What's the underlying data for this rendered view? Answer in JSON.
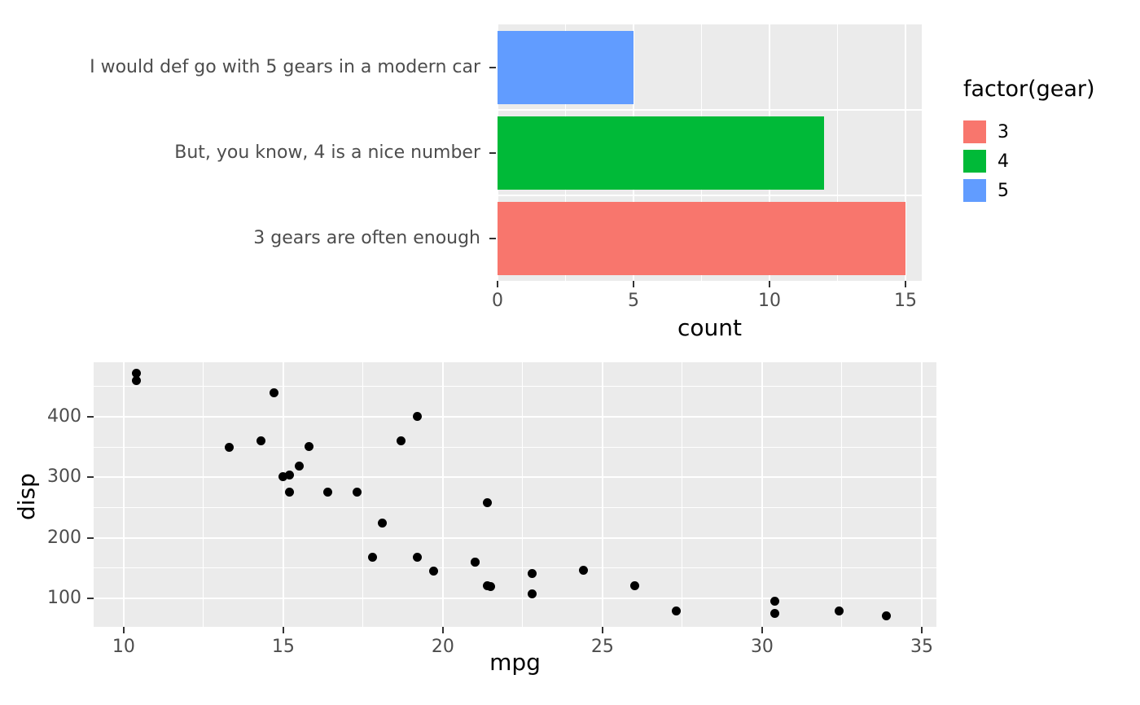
{
  "chart_data": [
    {
      "type": "bar",
      "orientation": "horizontal",
      "categories": [
        "I would def go with 5 gears in a modern car",
        "But, you know, 4 is a nice number",
        "3 gears are often enough"
      ],
      "values": [
        5,
        12,
        15
      ],
      "bar_colors": [
        "#619CFF",
        "#00BA38",
        "#F8766D"
      ],
      "xlabel": "count",
      "x_ticks": [
        0,
        5,
        10,
        15
      ],
      "x_minor_ticks": [
        2.5,
        7.5,
        12.5
      ],
      "xlim": [
        0,
        15.6
      ],
      "panel_background": "#EBEBEB",
      "grid_color": "#FFFFFF",
      "legend": {
        "title": "factor(gear)",
        "position": "right",
        "entries": [
          {
            "label": "3",
            "color": "#F8766D"
          },
          {
            "label": "4",
            "color": "#00BA38"
          },
          {
            "label": "5",
            "color": "#619CFF"
          }
        ]
      }
    },
    {
      "type": "scatter",
      "xlabel": "mpg",
      "ylabel": "disp",
      "x_ticks": [
        10,
        15,
        20,
        25,
        30,
        35
      ],
      "x_minor_ticks": [
        12.5,
        17.5,
        22.5,
        27.5,
        32.5
      ],
      "y_ticks": [
        100,
        200,
        300,
        400
      ],
      "y_minor_ticks": [
        150,
        250,
        350,
        450
      ],
      "xlim": [
        9.06,
        35.46
      ],
      "ylim": [
        53,
        490
      ],
      "point_color": "#000000",
      "panel_background": "#EBEBEB",
      "grid_color": "#FFFFFF",
      "points": [
        [
          21.0,
          160.0
        ],
        [
          21.0,
          160.0
        ],
        [
          22.8,
          108.0
        ],
        [
          21.4,
          258.0
        ],
        [
          18.7,
          360.0
        ],
        [
          18.1,
          225.0
        ],
        [
          14.3,
          360.0
        ],
        [
          24.4,
          146.7
        ],
        [
          22.8,
          140.8
        ],
        [
          19.2,
          167.6
        ],
        [
          17.8,
          167.6
        ],
        [
          16.4,
          275.8
        ],
        [
          17.3,
          275.8
        ],
        [
          15.2,
          275.8
        ],
        [
          10.4,
          472.0
        ],
        [
          10.4,
          460.0
        ],
        [
          14.7,
          440.0
        ],
        [
          32.4,
          78.7
        ],
        [
          30.4,
          75.7
        ],
        [
          33.9,
          71.1
        ],
        [
          21.5,
          120.1
        ],
        [
          15.5,
          318.0
        ],
        [
          15.2,
          304.0
        ],
        [
          13.3,
          350.0
        ],
        [
          19.2,
          400.0
        ],
        [
          27.3,
          79.0
        ],
        [
          26.0,
          120.3
        ],
        [
          30.4,
          95.1
        ],
        [
          15.8,
          351.0
        ],
        [
          19.7,
          145.0
        ],
        [
          15.0,
          301.0
        ],
        [
          21.4,
          121.0
        ]
      ]
    }
  ]
}
